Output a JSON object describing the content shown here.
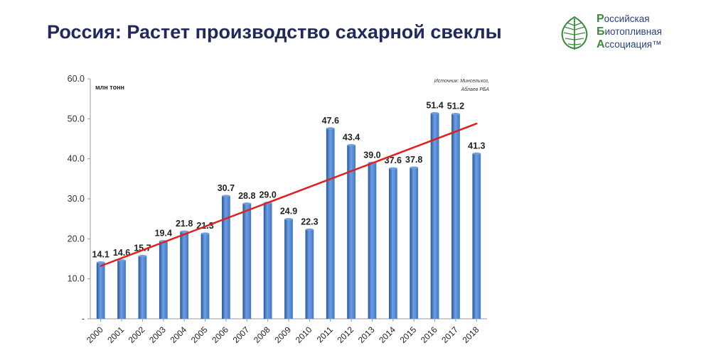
{
  "slide": {
    "title": "Россия: Растет производство сахарной свеклы"
  },
  "logo": {
    "lines": [
      {
        "cap": "Р",
        "rest": "оссийская"
      },
      {
        "cap": "Б",
        "rest": "иотопливная"
      },
      {
        "cap": "А",
        "rest": "ссоциация™"
      }
    ],
    "emblem_icon": "birch-leaf-icon",
    "primary_color": "#3a8a3e",
    "text_color": "#2b3f80"
  },
  "chart_data": {
    "type": "bar",
    "title": "",
    "unit_label": "млн тонн",
    "source_note_lines": [
      "Источник: Минсельхоз,",
      "Аблаев РБА"
    ],
    "categories": [
      "2000",
      "2001",
      "2002",
      "2003",
      "2004",
      "2005",
      "2006",
      "2007",
      "2008",
      "2009",
      "2010",
      "2011",
      "2012",
      "2013",
      "2014",
      "2015",
      "2016",
      "2017",
      "2018"
    ],
    "values": [
      14.1,
      14.6,
      15.7,
      19.4,
      21.8,
      21.3,
      30.7,
      28.8,
      29.0,
      24.9,
      22.3,
      47.6,
      43.4,
      39.0,
      37.6,
      37.8,
      51.4,
      51.2,
      41.3
    ],
    "value_labels": [
      "14.1",
      "14.6",
      "15.7",
      "19.4",
      "21.8",
      "21.3",
      "30.7",
      "28.8",
      "29.0",
      "24.9",
      "22.3",
      "47.6",
      "43.4",
      "39.0",
      "37.6",
      "37.8",
      "51.4",
      "51.2",
      "41.3"
    ],
    "ylim": [
      0,
      60
    ],
    "yticks": [
      0,
      10,
      20,
      30,
      40,
      50,
      60
    ],
    "ytick_labels": [
      "-",
      "10.0",
      "20.0",
      "30.0",
      "40.0",
      "50.0",
      "60.0"
    ],
    "grid": false,
    "trendline": {
      "type": "linear",
      "color": "#e02020",
      "start_value": 13.2,
      "end_value": 48.8
    },
    "bar_color": "#3f78c8",
    "bar_color_dark": "#24579f",
    "bar_color_light": "#6f9fe0",
    "legend": "none"
  }
}
